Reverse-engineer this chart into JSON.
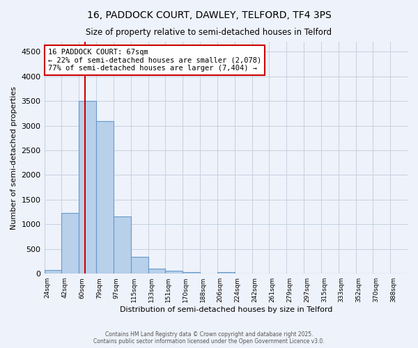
{
  "title": "16, PADDOCK COURT, DAWLEY, TELFORD, TF4 3PS",
  "subtitle": "Size of property relative to semi-detached houses in Telford",
  "xlabel": "Distribution of semi-detached houses by size in Telford",
  "ylabel": "Number of semi-detached properties",
  "bar_labels": [
    "24sqm",
    "42sqm",
    "60sqm",
    "79sqm",
    "97sqm",
    "115sqm",
    "133sqm",
    "151sqm",
    "170sqm",
    "188sqm",
    "206sqm",
    "224sqm",
    "242sqm",
    "261sqm",
    "279sqm",
    "297sqm",
    "315sqm",
    "333sqm",
    "352sqm",
    "370sqm",
    "388sqm"
  ],
  "bar_values": [
    75,
    1230,
    3500,
    3090,
    1160,
    340,
    105,
    55,
    35,
    0,
    35,
    0,
    0,
    0,
    0,
    0,
    0,
    0,
    0,
    0,
    0
  ],
  "bar_color": "#b8d0ea",
  "bar_edge_color": "#6699cc",
  "ylim": [
    0,
    4700
  ],
  "yticks": [
    0,
    500,
    1000,
    1500,
    2000,
    2500,
    3000,
    3500,
    4000,
    4500
  ],
  "property_line_color": "#cc0000",
  "annotation_title": "16 PADDOCK COURT: 67sqm",
  "annotation_line1": "← 22% of semi-detached houses are smaller (2,078)",
  "annotation_line2": "77% of semi-detached houses are larger (7,404) →",
  "annotation_box_color": "#cc0000",
  "background_color": "#eef2fa",
  "grid_color": "#c5d0e0",
  "footer1": "Contains HM Land Registry data © Crown copyright and database right 2025.",
  "footer2": "Contains public sector information licensed under the Open Government Licence v3.0."
}
